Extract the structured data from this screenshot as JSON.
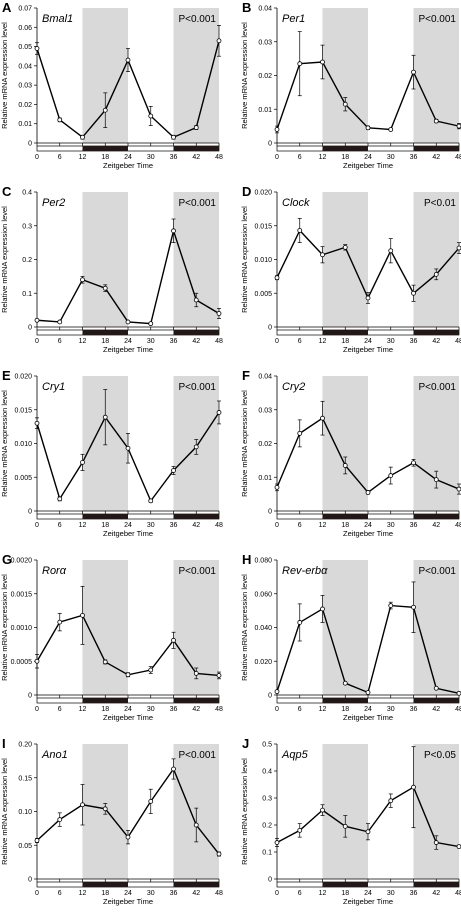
{
  "figure": {
    "x_axis_label": "Zeitgeber Time",
    "y_axis_label": "Relative mRNA  expression level",
    "x_ticks": [
      0,
      6,
      12,
      18,
      24,
      30,
      36,
      42,
      48
    ],
    "dark_intervals": [
      [
        12,
        24
      ],
      [
        36,
        48
      ]
    ],
    "colors": {
      "shade": "#d9d9d9",
      "line": "#000000",
      "marker_fill": "#ffffff",
      "dark_bar": "#231815"
    }
  },
  "chart_data": [
    {
      "panel": "A",
      "gene": "Bmal1",
      "pvalue": "P<0.001",
      "type": "line",
      "ylim": [
        0,
        0.07
      ],
      "yticks": [
        0,
        0.01,
        0.02,
        0.03,
        0.04,
        0.05,
        0.06,
        0.07
      ],
      "yticklabels": [
        "0",
        "0.01",
        "0.02",
        "0.03",
        "0.04",
        "0.05",
        "0.06",
        "0.07"
      ],
      "x": [
        0,
        6,
        12,
        18,
        24,
        30,
        36,
        42,
        48
      ],
      "values": [
        0.049,
        0.012,
        0.003,
        0.017,
        0.043,
        0.014,
        0.003,
        0.008,
        0.053
      ],
      "errors": [
        0.003,
        0.001,
        0.001,
        0.009,
        0.006,
        0.005,
        0.001,
        0.001,
        0.008
      ]
    },
    {
      "panel": "B",
      "gene": "Per1",
      "pvalue": "P<0.001",
      "type": "line",
      "ylim": [
        0,
        0.04
      ],
      "yticks": [
        0,
        0.01,
        0.02,
        0.03,
        0.04
      ],
      "yticklabels": [
        "0",
        "0.01",
        "0.02",
        "0.03",
        "0.04"
      ],
      "x": [
        0,
        6,
        12,
        18,
        24,
        30,
        36,
        42,
        48
      ],
      "values": [
        0.004,
        0.0235,
        0.024,
        0.0115,
        0.0045,
        0.004,
        0.021,
        0.0065,
        0.005
      ],
      "errors": [
        0.001,
        0.0095,
        0.005,
        0.002,
        0.0005,
        0.0003,
        0.005,
        0.0005,
        0.0008
      ]
    },
    {
      "panel": "C",
      "gene": "Per2",
      "pvalue": "P<0.001",
      "type": "line",
      "ylim": [
        0,
        0.4
      ],
      "yticks": [
        0,
        0.1,
        0.2,
        0.3,
        0.4
      ],
      "yticklabels": [
        "0",
        "0.1",
        "0.2",
        "0.3",
        "0.4"
      ],
      "x": [
        0,
        6,
        12,
        18,
        24,
        30,
        36,
        42,
        48
      ],
      "values": [
        0.02,
        0.015,
        0.14,
        0.115,
        0.015,
        0.01,
        0.285,
        0.08,
        0.04
      ],
      "errors": [
        0.003,
        0.003,
        0.01,
        0.01,
        0.003,
        0.003,
        0.035,
        0.02,
        0.015
      ]
    },
    {
      "panel": "D",
      "gene": "Clock",
      "pvalue": "P<0.01",
      "type": "line",
      "ylim": [
        0,
        0.02
      ],
      "yticks": [
        0,
        0.005,
        0.01,
        0.015,
        0.02
      ],
      "yticklabels": [
        "0",
        "0.005",
        "0.010",
        "0.015",
        "0.020"
      ],
      "x": [
        0,
        6,
        12,
        18,
        24,
        30,
        36,
        42,
        48
      ],
      "values": [
        0.0073,
        0.0143,
        0.0107,
        0.0118,
        0.0043,
        0.0113,
        0.005,
        0.0078,
        0.0117
      ],
      "errors": [
        0.0003,
        0.0018,
        0.0012,
        0.0004,
        0.0008,
        0.0018,
        0.0012,
        0.0008,
        0.0008
      ]
    },
    {
      "panel": "E",
      "gene": "Cry1",
      "pvalue": "P<0.001",
      "type": "line",
      "ylim": [
        0,
        0.02
      ],
      "yticks": [
        0,
        0.005,
        0.01,
        0.015,
        0.02
      ],
      "yticklabels": [
        "0",
        "0.005",
        "0.010",
        "0.015",
        "0.020"
      ],
      "x": [
        0,
        6,
        12,
        18,
        24,
        30,
        36,
        42,
        48
      ],
      "values": [
        0.013,
        0.0018,
        0.0072,
        0.0139,
        0.0093,
        0.0015,
        0.006,
        0.0095,
        0.0146
      ],
      "errors": [
        0.0008,
        0.0003,
        0.0012,
        0.0041,
        0.0022,
        0.0002,
        0.0006,
        0.0011,
        0.0017
      ]
    },
    {
      "panel": "F",
      "gene": "Cry2",
      "pvalue": "P<0.001",
      "type": "line",
      "ylim": [
        0,
        0.04
      ],
      "yticks": [
        0,
        0.01,
        0.02,
        0.03,
        0.04
      ],
      "yticklabels": [
        "0",
        "0.01",
        "0.02",
        "0.03",
        "0.04"
      ],
      "x": [
        0,
        6,
        12,
        18,
        24,
        30,
        36,
        42,
        48
      ],
      "values": [
        0.007,
        0.023,
        0.0275,
        0.0135,
        0.0055,
        0.0105,
        0.0143,
        0.0093,
        0.0065
      ],
      "errors": [
        0.001,
        0.004,
        0.005,
        0.0025,
        0.0005,
        0.0025,
        0.001,
        0.0025,
        0.0015
      ]
    },
    {
      "panel": "G",
      "gene": "Rorα",
      "pvalue": "P<0.001",
      "type": "line",
      "ylim": [
        0,
        0.002
      ],
      "yticks": [
        0,
        0.0005,
        0.001,
        0.0015,
        0.002
      ],
      "yticklabels": [
        "0",
        "0.0005",
        "0.0010",
        "0.0015",
        "0.0020"
      ],
      "x": [
        0,
        6,
        12,
        18,
        24,
        30,
        36,
        42,
        48
      ],
      "values": [
        0.0005,
        0.00108,
        0.00118,
        0.00049,
        0.0003,
        0.00037,
        0.00081,
        0.00032,
        0.00029
      ],
      "errors": [
        0.0001,
        0.00013,
        0.00043,
        3e-05,
        3e-05,
        5e-05,
        0.00012,
        8e-05,
        5e-05
      ]
    },
    {
      "panel": "H",
      "gene": "Rev-erbα",
      "pvalue": "P<0.001",
      "type": "line",
      "ylim": [
        0,
        0.08
      ],
      "yticks": [
        0,
        0.02,
        0.04,
        0.06,
        0.08
      ],
      "yticklabels": [
        "0",
        "0.020",
        "0.040",
        "0.060",
        "0.080"
      ],
      "x": [
        0,
        6,
        12,
        18,
        24,
        30,
        36,
        42,
        48
      ],
      "values": [
        0.002,
        0.043,
        0.051,
        0.007,
        0.0015,
        0.053,
        0.052,
        0.004,
        0.001
      ],
      "errors": [
        0.0005,
        0.011,
        0.008,
        0.0005,
        0.0003,
        0.002,
        0.015,
        0.0005,
        0.0003
      ]
    },
    {
      "panel": "I",
      "gene": "Ano1",
      "pvalue": "P<0.001",
      "type": "line",
      "ylim": [
        0,
        0.2
      ],
      "yticks": [
        0,
        0.05,
        0.1,
        0.15,
        0.2
      ],
      "yticklabels": [
        "0",
        "0.05",
        "0.10",
        "0.15",
        "0.20"
      ],
      "x": [
        0,
        6,
        12,
        18,
        24,
        30,
        36,
        42,
        48
      ],
      "values": [
        0.057,
        0.088,
        0.11,
        0.104,
        0.062,
        0.115,
        0.163,
        0.08,
        0.037
      ],
      "errors": [
        0.003,
        0.01,
        0.03,
        0.008,
        0.01,
        0.018,
        0.015,
        0.025,
        0.003
      ]
    },
    {
      "panel": "J",
      "gene": "Aqp5",
      "pvalue": "P<0.05",
      "type": "line",
      "ylim": [
        0,
        0.5
      ],
      "yticks": [
        0,
        0.1,
        0.2,
        0.3,
        0.4,
        0.5
      ],
      "yticklabels": [
        "0",
        "0.1",
        "0.2",
        "0.3",
        "0.4",
        "0.5"
      ],
      "x": [
        0,
        6,
        12,
        18,
        24,
        30,
        36,
        42,
        48
      ],
      "values": [
        0.135,
        0.18,
        0.255,
        0.195,
        0.175,
        0.29,
        0.34,
        0.135,
        0.12
      ],
      "errors": [
        0.015,
        0.025,
        0.02,
        0.04,
        0.03,
        0.025,
        0.15,
        0.025,
        0.005
      ]
    }
  ]
}
